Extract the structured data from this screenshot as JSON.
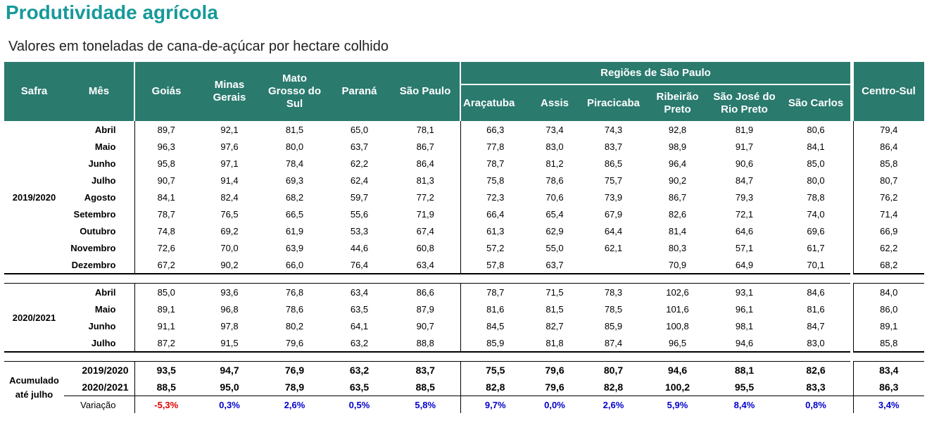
{
  "title": "Produtividade agrícola",
  "subtitle": "Valores em toneladas de cana-de-açúcar por hectare colhido",
  "table": {
    "headers": {
      "safra": "Safra",
      "mes": "Mês",
      "columns": [
        "Goiás",
        "Minas Gerais",
        "Mato Grosso do Sul",
        "Paraná",
        "São Paulo"
      ],
      "group": "Regiões de São Paulo",
      "group_columns": [
        "Araçatuba",
        "Assis",
        "Piracicaba",
        "Ribeirão Preto",
        "São José do Rio Preto",
        "São Carlos"
      ],
      "total": "Centro-Sul"
    },
    "sections": [
      {
        "safra": "2019/2020",
        "rows": [
          {
            "mes": "Abril",
            "values": [
              "89,7",
              "92,1",
              "81,5",
              "65,0",
              "78,1",
              "66,3",
              "73,4",
              "74,3",
              "92,8",
              "81,9",
              "80,6",
              "79,4"
            ]
          },
          {
            "mes": "Maio",
            "values": [
              "96,3",
              "97,6",
              "80,0",
              "63,7",
              "86,7",
              "77,8",
              "83,0",
              "83,7",
              "98,9",
              "91,7",
              "84,1",
              "86,4"
            ]
          },
          {
            "mes": "Junho",
            "values": [
              "95,8",
              "97,1",
              "78,4",
              "62,2",
              "86,4",
              "78,7",
              "81,2",
              "86,5",
              "96,4",
              "90,6",
              "85,0",
              "85,8"
            ]
          },
          {
            "mes": "Julho",
            "values": [
              "90,7",
              "91,4",
              "69,3",
              "62,4",
              "81,3",
              "75,8",
              "78,6",
              "75,7",
              "90,2",
              "84,7",
              "80,0",
              "80,7"
            ]
          },
          {
            "mes": "Agosto",
            "values": [
              "84,1",
              "82,4",
              "68,2",
              "59,7",
              "77,2",
              "72,3",
              "70,6",
              "73,9",
              "86,7",
              "79,3",
              "78,8",
              "76,2"
            ]
          },
          {
            "mes": "Setembro",
            "values": [
              "78,7",
              "76,5",
              "66,5",
              "55,6",
              "71,9",
              "66,4",
              "65,4",
              "67,9",
              "82,6",
              "72,1",
              "74,0",
              "71,4"
            ]
          },
          {
            "mes": "Outubro",
            "values": [
              "74,8",
              "69,2",
              "61,9",
              "53,3",
              "67,4",
              "61,3",
              "62,9",
              "64,4",
              "81,4",
              "64,6",
              "69,6",
              "66,9"
            ]
          },
          {
            "mes": "Novembro",
            "values": [
              "72,6",
              "70,0",
              "63,9",
              "44,6",
              "60,8",
              "57,2",
              "55,0",
              "62,1",
              "80,3",
              "57,1",
              "61,7",
              "62,2"
            ]
          },
          {
            "mes": "Dezembro",
            "values": [
              "67,2",
              "90,2",
              "66,0",
              "76,4",
              "63,4",
              "57,8",
              "63,7",
              null,
              "70,9",
              "64,9",
              "70,1",
              "68,2"
            ]
          }
        ]
      },
      {
        "safra": "2020/2021",
        "rows": [
          {
            "mes": "Abril",
            "values": [
              "85,0",
              "93,6",
              "76,8",
              "63,4",
              "86,6",
              "78,7",
              "71,5",
              "78,3",
              "102,6",
              "93,1",
              "84,6",
              "84,0"
            ]
          },
          {
            "mes": "Maio",
            "values": [
              "89,1",
              "96,8",
              "78,6",
              "63,5",
              "87,9",
              "81,6",
              "81,5",
              "78,5",
              "101,6",
              "96,1",
              "81,6",
              "86,0"
            ]
          },
          {
            "mes": "Junho",
            "values": [
              "91,1",
              "97,8",
              "80,2",
              "64,1",
              "90,7",
              "84,5",
              "82,7",
              "85,9",
              "100,8",
              "98,1",
              "84,7",
              "89,1"
            ]
          },
          {
            "mes": "Julho",
            "values": [
              "87,2",
              "91,5",
              "79,6",
              "63,2",
              "88,8",
              "85,9",
              "81,8",
              "87,4",
              "96,5",
              "94,6",
              "83,0",
              "85,8"
            ]
          }
        ]
      }
    ],
    "summary": {
      "label": "Acumulado até julho",
      "rows": [
        {
          "safra": "2019/2020",
          "values": [
            "93,5",
            "94,7",
            "76,9",
            "63,2",
            "83,7",
            "75,5",
            "79,6",
            "80,7",
            "94,6",
            "88,1",
            "82,6",
            "83,4"
          ]
        },
        {
          "safra": "2020/2021",
          "values": [
            "88,5",
            "95,0",
            "78,9",
            "63,5",
            "88,5",
            "82,8",
            "79,6",
            "82,8",
            "100,2",
            "95,5",
            "83,3",
            "86,3"
          ]
        }
      ],
      "variation": {
        "label": "Variação",
        "values": [
          "-5,3%",
          "0,3%",
          "2,6%",
          "0,5%",
          "5,8%",
          "9,7%",
          "0,0%",
          "2,6%",
          "5,9%",
          "8,4%",
          "0,8%",
          "3,4%"
        ]
      }
    }
  }
}
